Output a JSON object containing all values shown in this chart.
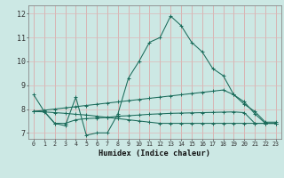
{
  "xlabel": "Humidex (Indice chaleur)",
  "bg_color": "#cce8e4",
  "grid_color_v": "#e8b0b0",
  "grid_color_h": "#e8d0d0",
  "line_color": "#1a6b5a",
  "xlim": [
    -0.5,
    23.5
  ],
  "ylim": [
    6.75,
    12.35
  ],
  "xticks": [
    0,
    1,
    2,
    3,
    4,
    5,
    6,
    7,
    8,
    9,
    10,
    11,
    12,
    13,
    14,
    15,
    16,
    17,
    18,
    19,
    20,
    21,
    22,
    23
  ],
  "yticks": [
    7,
    8,
    9,
    10,
    11,
    12
  ],
  "series": [
    [
      8.6,
      7.9,
      7.4,
      7.3,
      8.5,
      6.9,
      7.0,
      7.0,
      7.8,
      9.3,
      10.0,
      10.8,
      11.0,
      11.9,
      11.5,
      10.8,
      10.4,
      9.7,
      9.4,
      8.6,
      8.3,
      7.8,
      7.4,
      7.4
    ],
    [
      7.9,
      7.9,
      7.4,
      7.4,
      7.55,
      7.6,
      7.62,
      7.65,
      7.7,
      7.72,
      7.75,
      7.78,
      7.8,
      7.82,
      7.83,
      7.84,
      7.85,
      7.86,
      7.87,
      7.88,
      7.85,
      7.4,
      7.4,
      7.4
    ],
    [
      7.9,
      7.95,
      8.0,
      8.05,
      8.1,
      8.15,
      8.2,
      8.25,
      8.3,
      8.35,
      8.4,
      8.45,
      8.5,
      8.55,
      8.6,
      8.65,
      8.7,
      8.75,
      8.8,
      8.6,
      8.2,
      7.9,
      7.45,
      7.45
    ],
    [
      7.9,
      7.88,
      7.85,
      7.82,
      7.78,
      7.75,
      7.7,
      7.65,
      7.6,
      7.55,
      7.5,
      7.45,
      7.4,
      7.4,
      7.4,
      7.4,
      7.4,
      7.4,
      7.4,
      7.4,
      7.4,
      7.4,
      7.4,
      7.4
    ]
  ]
}
